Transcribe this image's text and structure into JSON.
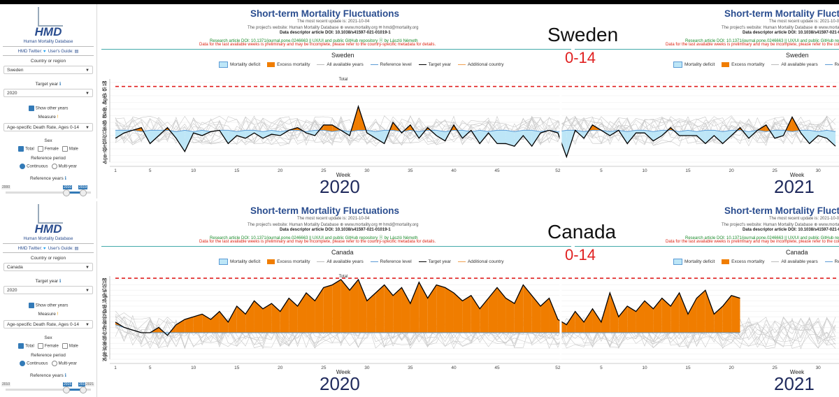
{
  "sidebar": {
    "logo_text": "HMD",
    "db_name": "Human Mortality Database",
    "twitter": "HMD Twitter:",
    "guide": "User's Guide:",
    "country_label": "Country or region",
    "year_label": "Target year",
    "show_other": "Show other years",
    "measure_label": "Measure",
    "measure_value": "Age-specific Death Rate, Ages 0-14",
    "sex_label": "Sex",
    "sex_total": "Total",
    "sex_female": "Female",
    "sex_male": "Male",
    "ref_label": "Reference period",
    "ref_cont": "Continuous",
    "ref_multi": "Multi-year",
    "ref_years_label": "Reference years"
  },
  "header": {
    "title": "Short-term Mortality Fluctuations",
    "update": "The most recent update is: 2021-10-04",
    "website": "The project's website: Human Mortality Database ⊕ www.mortality.org ✉ hmd@mortality.org",
    "doi": "Data descriptor article DOI: 10.1038/s41597-021-01019-1",
    "research": "Research article DOI: 10.1371/journal.pone.0246663 || UX/UI and public GitHub repository ⓞ by László Németh",
    "warning": "Data for the last available weeks is preliminary and may be incomplete, please refer to the country-specific metadata for details."
  },
  "legend": {
    "deficit": "Mortality deficit",
    "excess": "Excess mortality",
    "all_years": "All available years",
    "reference": "Reference level",
    "target": "Target year",
    "additional": "Additional country"
  },
  "colors": {
    "deficit": "#bde6f7",
    "excess": "#f07d00",
    "reference": "#5b9bd5",
    "threshold": "#e02020",
    "header": "#2a4d8f"
  },
  "panels": [
    {
      "country": "Sweden",
      "year": "2020",
      "next_year": "2021",
      "age_group": "0-14",
      "slider": {
        "min": "2000",
        "from": "2010",
        "to": "2019"
      }
    },
    {
      "country": "Canada",
      "year": "2020",
      "next_year": "2021",
      "age_group": "0-14",
      "slider": {
        "min": "2010",
        "from": "2015",
        "to": "2019",
        "max": "2021"
      }
    }
  ],
  "chart_data": [
    {
      "type": "line",
      "title": "Sweden",
      "subtitle": "Total",
      "xlabel": "Week",
      "ylabel": "Age-specific Death Rate, Ages 0-14",
      "ylim": [
        0,
        60
      ],
      "yticks": [
        0,
        5,
        10,
        15,
        20,
        25,
        30,
        35,
        40,
        45,
        50,
        55,
        60
      ],
      "xtick_labels": [
        "1",
        "5",
        "10",
        "15",
        "20",
        "25",
        "30",
        "35",
        "40",
        "45",
        "52",
        "5",
        "10",
        "15",
        "20",
        "25",
        "30"
      ],
      "threshold": 57,
      "x_weeks": [
        1,
        2,
        3,
        4,
        5,
        6,
        7,
        8,
        9,
        10,
        11,
        12,
        13,
        14,
        15,
        16,
        17,
        18,
        19,
        20,
        21,
        22,
        23,
        24,
        25,
        26,
        27,
        28,
        29,
        30,
        31,
        32,
        33,
        34,
        35,
        36,
        37,
        38,
        39,
        40,
        41,
        42,
        43,
        44,
        45,
        46,
        47,
        48,
        49,
        50,
        51,
        52,
        53,
        54,
        55,
        56,
        57,
        58,
        59,
        60,
        61,
        62,
        63,
        64,
        65,
        66,
        67,
        68,
        69,
        70,
        71,
        72,
        73,
        74,
        75,
        76,
        77,
        78,
        79,
        80,
        81,
        82,
        83,
        84
      ],
      "series": [
        {
          "name": "Target year",
          "values": [
            18,
            22,
            24,
            26,
            14,
            20,
            26,
            18,
            8,
            22,
            20,
            23,
            24,
            14,
            20,
            18,
            22,
            18,
            21,
            20,
            24,
            26,
            22,
            20,
            28,
            28,
            24,
            20,
            42,
            22,
            18,
            14,
            30,
            22,
            28,
            18,
            26,
            20,
            16,
            28,
            18,
            24,
            14,
            22,
            14,
            14,
            12,
            20,
            12,
            22,
            24,
            22,
            4,
            24,
            18,
            28,
            24,
            20,
            24,
            14,
            22,
            22,
            16,
            20,
            26,
            20,
            20,
            20,
            14,
            20,
            14,
            20,
            26,
            18,
            24,
            28,
            18,
            20,
            34,
            22,
            14,
            20,
            18,
            12
          ]
        },
        {
          "name": "Reference level",
          "values": [
            24,
            24,
            24,
            23,
            24,
            24,
            24,
            23,
            24,
            23,
            24,
            23,
            24,
            24,
            23,
            24,
            24,
            23,
            24,
            23,
            24,
            24,
            23,
            24,
            24,
            23,
            24,
            23,
            24,
            24,
            23,
            24,
            24,
            23,
            24,
            23,
            24,
            24,
            23,
            24,
            24,
            23,
            24,
            23,
            24,
            24,
            23,
            24,
            24,
            23,
            24,
            23,
            24,
            24,
            23,
            24,
            24,
            23,
            24,
            23,
            24,
            24,
            23,
            24,
            24,
            23,
            24,
            23,
            24,
            24,
            23,
            24,
            24,
            23,
            24,
            23,
            24,
            24,
            23,
            24,
            24,
            23,
            24,
            23
          ]
        }
      ]
    },
    {
      "type": "line",
      "title": "Canada",
      "subtitle": "Total",
      "xlabel": "Week",
      "ylabel": "Age-specific Death Rate, Ages 0-14",
      "ylim": [
        30,
        60
      ],
      "yticks": [
        30,
        32,
        34,
        36,
        38,
        40,
        42,
        44,
        46,
        48,
        50,
        52,
        54,
        56,
        58,
        60
      ],
      "xtick_labels": [
        "1",
        "5",
        "10",
        "15",
        "20",
        "25",
        "30",
        "35",
        "40",
        "45",
        "52",
        "5",
        "10",
        "15",
        "20",
        "25",
        "30"
      ],
      "threshold": 60.5,
      "x_weeks": [
        1,
        2,
        3,
        4,
        5,
        6,
        7,
        8,
        9,
        10,
        11,
        12,
        13,
        14,
        15,
        16,
        17,
        18,
        19,
        20,
        21,
        22,
        23,
        24,
        25,
        26,
        27,
        28,
        29,
        30,
        31,
        32,
        33,
        34,
        35,
        36,
        37,
        38,
        39,
        40,
        41,
        42,
        43,
        44,
        45,
        46,
        47,
        48,
        49,
        50,
        51,
        52,
        53,
        54,
        55,
        56,
        57,
        58,
        59,
        60,
        61,
        62,
        63,
        64,
        65,
        66,
        67,
        68,
        69,
        70,
        71,
        72,
        73
      ],
      "series": [
        {
          "name": "Target year",
          "values": [
            44,
            42,
            41,
            40,
            40,
            42,
            39,
            43,
            45,
            46,
            47,
            45,
            48,
            44,
            50,
            47,
            52,
            49,
            51,
            48,
            53,
            50,
            55,
            52,
            57,
            58,
            60,
            56,
            60,
            52,
            55,
            58,
            54,
            57,
            51,
            59,
            53,
            58,
            57,
            55,
            52,
            54,
            49,
            53,
            57,
            53,
            51,
            58,
            54,
            50,
            53,
            45,
            43,
            48,
            44,
            49,
            44,
            55,
            46,
            50,
            48,
            52,
            49,
            53,
            50,
            55,
            47,
            53,
            56,
            47,
            50,
            54,
            53
          ]
        },
        {
          "name": "Reference level",
          "values": [
            43,
            42,
            41,
            40,
            40,
            40,
            40,
            40,
            40,
            40,
            40,
            40,
            40,
            40,
            40,
            40,
            40,
            40,
            40,
            40,
            40,
            40,
            40,
            40,
            40,
            40,
            40,
            40,
            40,
            40,
            40,
            40,
            40,
            40,
            40,
            40,
            40,
            40,
            40,
            40,
            40,
            40,
            40,
            40,
            40,
            40,
            40,
            40,
            40,
            40,
            40,
            40,
            40,
            40,
            40,
            40,
            40,
            40,
            40,
            40,
            40,
            40,
            40,
            40,
            40,
            40,
            40,
            40,
            40,
            40,
            40,
            40,
            40
          ]
        }
      ]
    }
  ]
}
